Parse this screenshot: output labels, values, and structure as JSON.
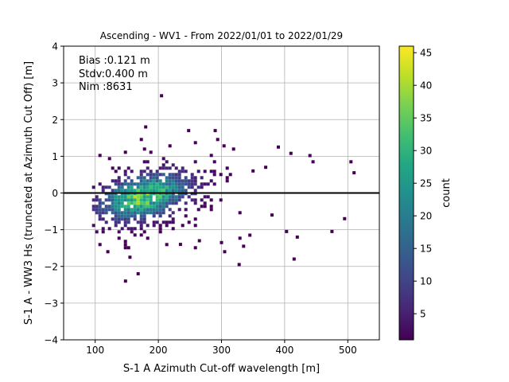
{
  "chart_data": {
    "type": "heatmap",
    "title": "Ascending - WV1 - From 2022/01/01 to 2022/01/29",
    "xlabel": "S-1 A Azimuth Cut-off wavelength [m]",
    "ylabel": "S-1 A - WW3 Hs (truncated at Azimuth Cut Off) [m]",
    "xlim": [
      50,
      550
    ],
    "ylim": [
      -4,
      4
    ],
    "x_ticks": [
      "100",
      "200",
      "300",
      "400",
      "500"
    ],
    "y_ticks": [
      "−4",
      "−3",
      "−2",
      "−1",
      "0",
      "1",
      "2",
      "3",
      "4"
    ],
    "grid": true,
    "zero_line": 0,
    "stats": [
      "Bias :0.121 m",
      "Stdv:0.400 m",
      "Nim :8631"
    ],
    "colorbar": {
      "label": "count",
      "colormap": "viridis",
      "range": [
        1,
        46
      ],
      "ticks": [
        "5",
        "10",
        "15",
        "20",
        "25",
        "30",
        "35",
        "40",
        "45"
      ]
    },
    "density": {
      "description_counts": "2D histogram of residual vs cut-off wavelength",
      "center_x": 175,
      "center_y": -0.05,
      "peak_count": 46,
      "core_x_range": [
        95,
        330
      ],
      "core_y_range": [
        -1.5,
        1.5
      ],
      "outliers": [
        [
          205,
          2.65
        ],
        [
          180,
          1.8
        ],
        [
          248,
          1.7
        ],
        [
          290,
          1.7
        ],
        [
          390,
          1.25
        ],
        [
          410,
          1.08
        ],
        [
          440,
          1.02
        ],
        [
          445,
          0.85
        ],
        [
          370,
          0.7
        ],
        [
          350,
          0.6
        ],
        [
          265,
          -1.3
        ],
        [
          235,
          -1.4
        ],
        [
          300,
          -1.35
        ],
        [
          335,
          -1.45
        ],
        [
          305,
          -1.6
        ],
        [
          345,
          -1.15
        ],
        [
          420,
          -1.2
        ],
        [
          475,
          -1.05
        ],
        [
          403,
          -1.05
        ],
        [
          380,
          -0.6
        ],
        [
          155,
          -1.75
        ],
        [
          148,
          -2.4
        ],
        [
          168,
          -2.2
        ],
        [
          120,
          -1.6
        ],
        [
          328,
          -1.95
        ],
        [
          415,
          -1.8
        ],
        [
          495,
          -0.7
        ],
        [
          510,
          0.55
        ],
        [
          505,
          0.85
        ]
      ]
    }
  }
}
